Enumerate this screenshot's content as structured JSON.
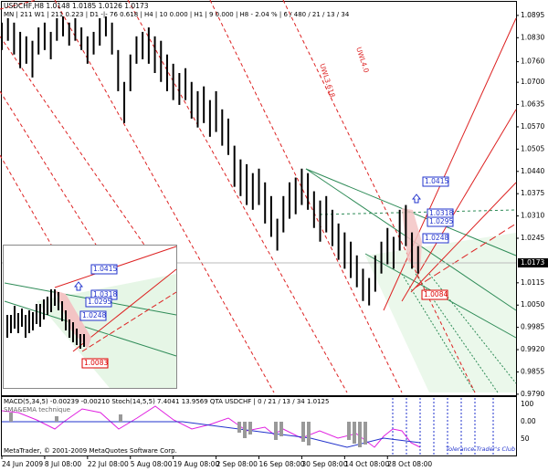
{
  "chart_data": {
    "type": "hlbar",
    "title": "USDCHF,H8 1.0148 1.0185 1.0126 1.0173",
    "subtitle": "MN | 211   W1 | 211   0.223 | D1 -|- 76   0.618 | H4 | 10   0.000 | H1 | 9   0.000 | H8 - 2.04 % | 6 / 480 / 21 / 13 / 34",
    "color": "#000000",
    "xlim": [
      0,
      84
    ],
    "ylim": [
      0.9787,
      1.094
    ],
    "xticks": [
      {
        "value": 0,
        "label": "24 Jun 2009"
      },
      {
        "value": 7,
        "label": "8 Jul 08:00"
      },
      {
        "value": 14,
        "label": "22 Jul 08:00"
      },
      {
        "value": 21,
        "label": "5 Aug 08:00"
      },
      {
        "value": 28,
        "label": "19 Aug 08:00"
      },
      {
        "value": 35,
        "label": "2 Sep 08:00"
      },
      {
        "value": 42,
        "label": "16 Sep 08:00"
      },
      {
        "value": 49,
        "label": "30 Sep 08:00"
      },
      {
        "value": 56,
        "label": "14 Oct 08:00"
      },
      {
        "value": 63,
        "label": "28 Oct 08:00"
      }
    ],
    "yticks": [
      {
        "value": 1.0895,
        "label": "1.0895"
      },
      {
        "value": 1.083,
        "label": "1.0830"
      },
      {
        "value": 1.076,
        "label": "1.0760"
      },
      {
        "value": 1.07,
        "label": "1.0700"
      },
      {
        "value": 1.0635,
        "label": "1.0635"
      },
      {
        "value": 1.057,
        "label": "1.0570"
      },
      {
        "value": 1.0505,
        "label": "1.0505"
      },
      {
        "value": 1.044,
        "label": "1.0440"
      },
      {
        "value": 1.0375,
        "label": "1.0375"
      },
      {
        "value": 1.031,
        "label": "1.0310"
      },
      {
        "value": 1.0245,
        "label": "1.0245"
      },
      {
        "value": 1.0115,
        "label": "1.0115"
      },
      {
        "value": 1.005,
        "label": "1.0050"
      },
      {
        "value": 0.9985,
        "label": "0.9985"
      },
      {
        "value": 0.992,
        "label": "0.9920"
      },
      {
        "value": 0.9855,
        "label": "0.9855"
      },
      {
        "value": 0.979,
        "label": "0.9790"
      }
    ],
    "last_price": {
      "value": 1.0173,
      "label": "1.0173"
    },
    "high": [
      1.0874,
      1.0887,
      1.0874,
      1.0847,
      1.0834,
      1.0821,
      1.086,
      1.0874,
      1.0847,
      1.0887,
      1.0892,
      1.0874,
      1.0887,
      1.086,
      1.0834,
      1.0847,
      1.0887,
      1.0892,
      1.0874,
      1.0794,
      1.0701,
      1.0781,
      1.0834,
      1.0847,
      1.086,
      1.0834,
      1.0821,
      1.0781,
      1.0754,
      1.0727,
      1.0741,
      1.0701,
      1.0674,
      1.0688,
      1.0648,
      1.0674,
      1.0621,
      1.0594,
      1.0515,
      1.0475,
      1.0461,
      1.0435,
      1.0448,
      1.0408,
      1.0368,
      1.0302,
      1.0368,
      1.0408,
      1.0422,
      1.0448,
      1.0435,
      1.0382,
      1.0355,
      1.0368,
      1.0328,
      1.0288,
      1.0262,
      1.0235,
      1.0195,
      1.0156,
      1.0129,
      1.0195,
      1.0235,
      1.0275,
      1.0249,
      1.0328,
      1.0342,
      1.0262,
      1.0222
    ],
    "low": [
      1.0794,
      1.0821,
      1.0781,
      1.0741,
      1.0754,
      1.0714,
      1.0781,
      1.0794,
      1.0767,
      1.0821,
      1.0834,
      1.0807,
      1.0821,
      1.0794,
      1.0754,
      1.0781,
      1.0807,
      1.0834,
      1.0781,
      1.0674,
      1.0581,
      1.0674,
      1.0754,
      1.0767,
      1.0754,
      1.0727,
      1.0701,
      1.0674,
      1.0648,
      1.0634,
      1.0648,
      1.0594,
      1.0568,
      1.0581,
      1.0541,
      1.0555,
      1.0515,
      1.0488,
      1.0395,
      1.0368,
      1.0342,
      1.0328,
      1.0342,
      1.0288,
      1.0249,
      1.0209,
      1.0262,
      1.0302,
      1.0315,
      1.0342,
      1.0328,
      1.0275,
      1.0235,
      1.0262,
      1.0222,
      1.0182,
      1.0156,
      1.0129,
      1.0102,
      1.0062,
      1.0049,
      1.0089,
      1.0142,
      1.0169,
      1.0156,
      1.0209,
      1.0222,
      1.0156,
      1.0142
    ],
    "annotations": [
      "UWL3.618",
      "UWL4.0"
    ],
    "price_labels": [
      "1.0415",
      "1.0318",
      "1.0295",
      "1.0248",
      "1.0084"
    ],
    "inset_labels": [
      "1.0415",
      "1.0318",
      "1.0295",
      "1.0248",
      "1.0083"
    ],
    "indicator": {
      "title": "MACD(5,34,5) -0.00239 -0.00210   Stoch(14,5,5) 7.4041 13.9569   QTA USDCHF | 0 / 21 / 13 / 34 1.0125",
      "subtitle": "SMA&EMA technique",
      "labels": [
        "100",
        "0.00",
        "50"
      ]
    },
    "footer": "MetaTrader, © 2001-2009 MetaQuotes Software Corp.",
    "credit": "Tolerance Trader's Club"
  }
}
